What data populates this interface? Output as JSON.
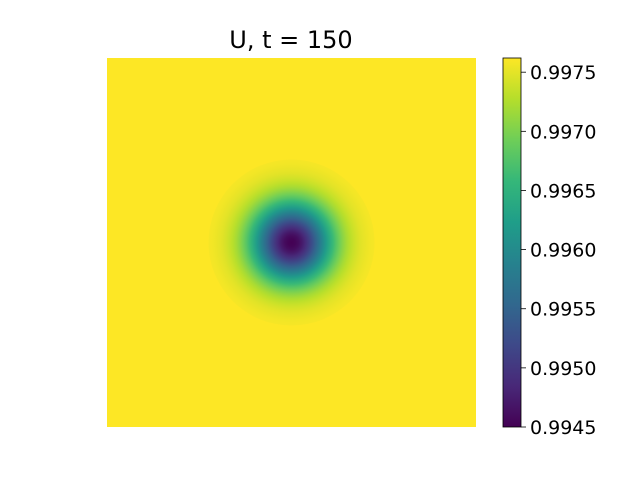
{
  "chart_data": {
    "type": "heatmap",
    "title": "U, t = 150",
    "xlabel": "",
    "ylabel": "",
    "axes_visible": false,
    "colormap": "viridis",
    "field": {
      "description_shape": "radial-dip",
      "background_value": 0.99762,
      "min_value": 0.9945,
      "center_fraction": [
        0.5,
        0.5
      ],
      "width_fraction": 0.075
    },
    "colorbar": {
      "vmin": 0.9945,
      "vmax": 0.99762,
      "ticks": [
        0.9945,
        0.995,
        0.9955,
        0.996,
        0.9965,
        0.997,
        0.9975
      ],
      "tick_labels": [
        "0.9945",
        "0.9950",
        "0.9955",
        "0.9960",
        "0.9965",
        "0.9970",
        "0.9975"
      ],
      "location": "right"
    }
  },
  "colors": {
    "viridis": [
      "#440154",
      "#482878",
      "#3e4989",
      "#31688e",
      "#26828e",
      "#1f9e89",
      "#35b779",
      "#6ece58",
      "#b5de2b",
      "#fde725"
    ]
  }
}
